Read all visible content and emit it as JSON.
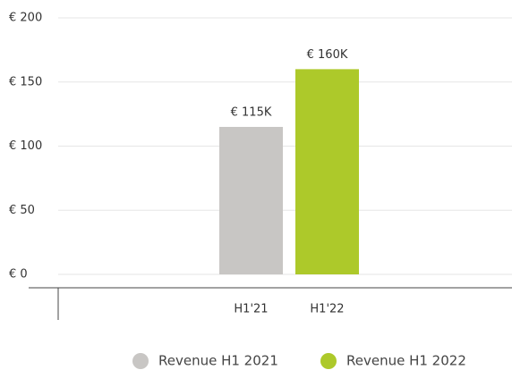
{
  "chart_data": {
    "type": "bar",
    "categories": [
      "H1'21",
      "H1'22"
    ],
    "series": [
      {
        "name": "Revenue H1 2021",
        "color": "#c8c6c4",
        "values": [
          115,
          null
        ],
        "value_labels": [
          "€ 115K",
          null
        ]
      },
      {
        "name": "Revenue H1 2022",
        "color": "#adc92a",
        "values": [
          null,
          160
        ],
        "value_labels": [
          null,
          "€ 160K"
        ]
      }
    ],
    "ylim": [
      0,
      200
    ],
    "yticks": [
      {
        "value": 0,
        "label": "€ 0"
      },
      {
        "value": 50,
        "label": "€ 50"
      },
      {
        "value": 100,
        "label": "€ 100"
      },
      {
        "value": 150,
        "label": "€ 150"
      },
      {
        "value": 200,
        "label": "€ 200"
      }
    ],
    "grid": true
  }
}
